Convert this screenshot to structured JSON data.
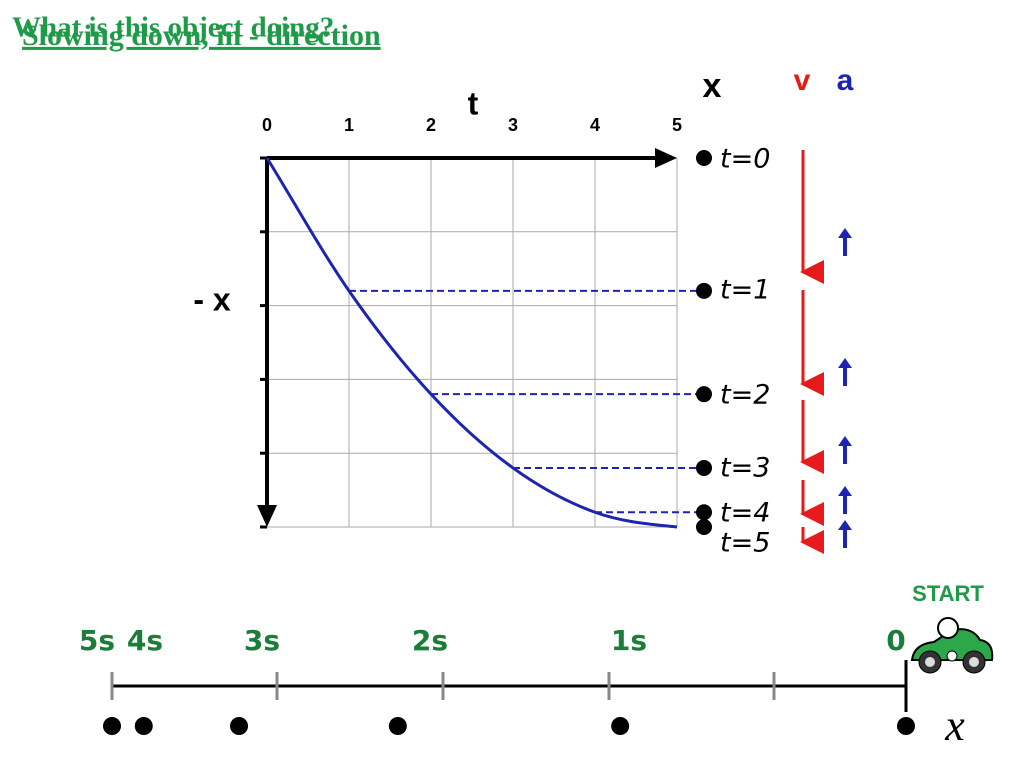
{
  "title": "What is this object doing?",
  "subtitle": "Slowing down, in - direction",
  "header": {
    "x": "x",
    "v": "v",
    "a": "a"
  },
  "graph": {
    "t_label": "t",
    "x_label": "- x",
    "ticks": [
      0,
      1,
      2,
      3,
      4,
      5
    ],
    "positions": [
      0,
      1.8,
      3.2,
      4.2,
      4.8,
      5
    ],
    "time_labels": [
      "t=0",
      "t=1",
      "t=2",
      "t=3",
      "t=4",
      "t=5"
    ]
  },
  "number_line": {
    "start": "START",
    "labels": [
      "5s",
      "4s",
      "3s",
      "2s",
      "1s",
      "0"
    ],
    "axis_label": "x"
  }
}
